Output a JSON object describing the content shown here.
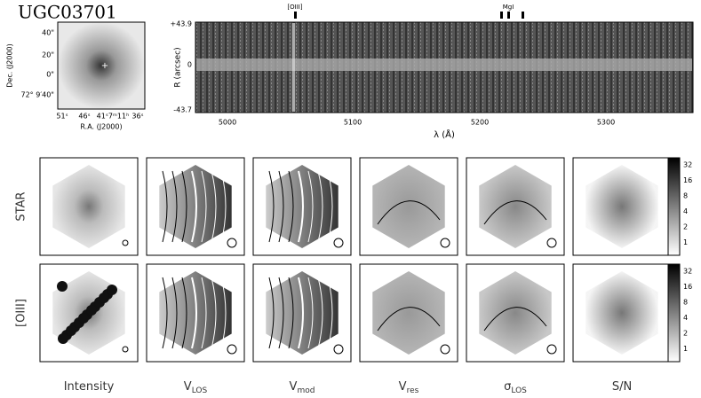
{
  "title": "UGC03701",
  "thumbnail": {
    "x_label": "R.A. (J2000)",
    "y_label": "Dec. (J2000)",
    "x_ticks": [
      "51ˢ",
      "46ˢ",
      "41ˢ7ᵐ11ʰ",
      "36ˢ"
    ],
    "y_ticks": [
      "40\"",
      "20\"",
      "0\"",
      "72° 9′40\""
    ]
  },
  "spectrum": {
    "lines": [
      "[OIII]",
      "MgI"
    ],
    "y_label": "R (arcsec)",
    "y_ticks": [
      "+43.9",
      "0",
      "-43.7"
    ],
    "x_ticks": [
      "5000",
      "5100",
      "5200",
      "5300"
    ],
    "x_label": "λ (Å)"
  },
  "rows": [
    "STAR",
    "[OIII]"
  ],
  "columns": [
    {
      "label": "Intensity"
    },
    {
      "label": "V",
      "sub": "LOS"
    },
    {
      "label": "V",
      "sub": "mod"
    },
    {
      "label": "V",
      "sub": "res"
    },
    {
      "label": "σ",
      "sub": "LOS"
    },
    {
      "label": "S/N"
    }
  ],
  "colorbar_ticks": [
    "32",
    "16",
    "8",
    "4",
    "2",
    "1"
  ]
}
